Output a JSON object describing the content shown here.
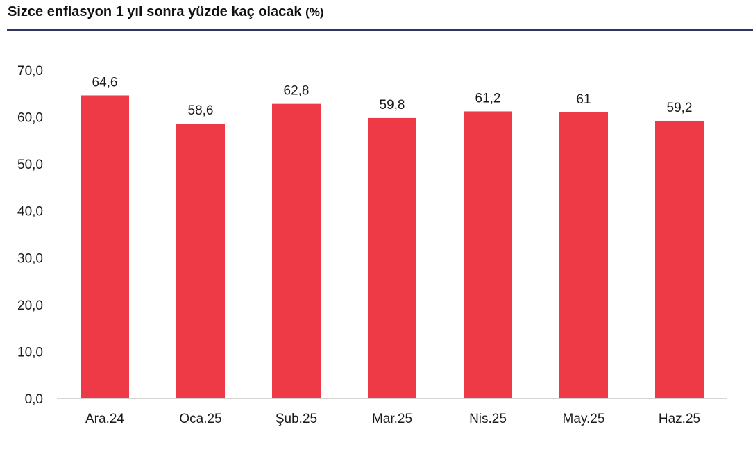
{
  "chart_data": {
    "type": "bar",
    "title": "Sizce enflasyon 1 yıl sonra yüzde kaç olacak",
    "title_unit": "(%)",
    "categories": [
      "Ara.24",
      "Oca.25",
      "Şub.25",
      "Mar.25",
      "Nis.25",
      "May.25",
      "Haz.25"
    ],
    "values": [
      64.6,
      58.6,
      62.8,
      59.8,
      61.2,
      61,
      59.2
    ],
    "value_labels": [
      "64,6",
      "58,6",
      "62,8",
      "59,8",
      "61,2",
      "61",
      "59,2"
    ],
    "y_ticks": [
      "0,0",
      "10,0",
      "20,0",
      "30,0",
      "40,0",
      "50,0",
      "60,0",
      "70,0"
    ],
    "ylim": [
      0,
      70
    ],
    "xlabel": "",
    "ylabel": "",
    "grid": false,
    "legend": "none",
    "bar_color": "#ee3a46",
    "accent_color": "#2e3560"
  }
}
